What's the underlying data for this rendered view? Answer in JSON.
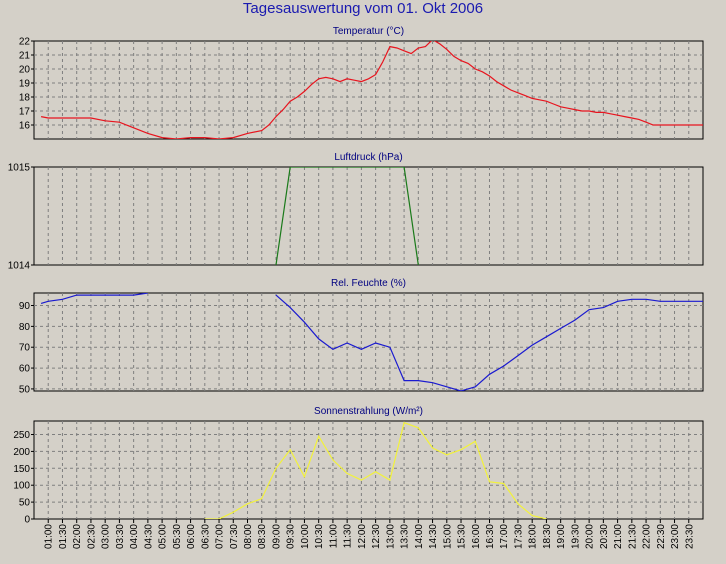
{
  "window": {
    "title": "Tagesauswertung vom 01. Okt 2006"
  },
  "colors": {
    "background": "#d4d0c8",
    "plot_background": "#d4d0c8",
    "grid": "#7f7f7f",
    "title": "#1a1ab0",
    "temperature": "#e8141e",
    "pressure": "#1a7a1a",
    "humidity": "#1a1ad0",
    "radiation": "#f2f23a"
  },
  "time_labels": [
    "01:00",
    "01:30",
    "02:00",
    "02:30",
    "03:00",
    "03:30",
    "04:00",
    "04:30",
    "05:00",
    "05:30",
    "06:00",
    "06:30",
    "07:00",
    "07:30",
    "08:00",
    "08:30",
    "09:00",
    "09:30",
    "10:00",
    "10:30",
    "11:00",
    "11:30",
    "12:00",
    "12:30",
    "13:00",
    "13:30",
    "14:00",
    "14:30",
    "15:00",
    "15:30",
    "16:00",
    "16:30",
    "17:00",
    "17:30",
    "18:00",
    "18:30",
    "19:00",
    "19:30",
    "20:00",
    "20:30",
    "21:00",
    "21:30",
    "22:00",
    "22:30",
    "23:00",
    "23:30"
  ],
  "chart_data": [
    {
      "type": "line",
      "title": "Temperatur (°C)",
      "xlabel": "",
      "ylabel": "",
      "ylim": [
        15,
        22
      ],
      "yticks": [
        16,
        17,
        18,
        19,
        20,
        21,
        22
      ],
      "grid": true,
      "series": [
        {
          "color": "#e8141e",
          "x": [
            0.5,
            1,
            2,
            3,
            4,
            5,
            6,
            7,
            8,
            9,
            10,
            11,
            12,
            13,
            14,
            15,
            16,
            16.5,
            17,
            17.5,
            18,
            18.5,
            19,
            19.5,
            20,
            20.5,
            21,
            21.5,
            22,
            22.5,
            23,
            23.5,
            24,
            24.5,
            25,
            25.5,
            26,
            26.5,
            27,
            27.5,
            28,
            28.5,
            29,
            29.5,
            30,
            30.5,
            31,
            31.5,
            32,
            32.5,
            33,
            33.5,
            34,
            34.5,
            35,
            35.5,
            36,
            36.5,
            37,
            37.5,
            38,
            38.5,
            39,
            39.5,
            40,
            40.5,
            41,
            41.5,
            42,
            42.5,
            43,
            43.5,
            44,
            44.5,
            45,
            45.5,
            46,
            46.5,
            47
          ],
          "y": [
            16.6,
            16.5,
            16.5,
            16.5,
            16.5,
            16.3,
            16.2,
            15.8,
            15.4,
            15.1,
            15.0,
            15.1,
            15.1,
            15.0,
            15.1,
            15.4,
            15.6,
            16.0,
            16.6,
            17.1,
            17.7,
            18.0,
            18.4,
            18.9,
            19.3,
            19.4,
            19.3,
            19.1,
            19.3,
            19.2,
            19.1,
            19.3,
            19.6,
            20.5,
            21.6,
            21.5,
            21.3,
            21.1,
            21.5,
            21.6,
            22.1,
            21.8,
            21.4,
            20.9,
            20.6,
            20.4,
            20.0,
            19.8,
            19.5,
            19.1,
            18.8,
            18.5,
            18.3,
            18.1,
            17.9,
            17.8,
            17.7,
            17.5,
            17.3,
            17.2,
            17.1,
            17.0,
            17.0,
            16.9,
            16.9,
            16.8,
            16.7,
            16.6,
            16.5,
            16.4,
            16.2,
            16.0,
            16.0,
            16.0,
            16.0,
            16.0,
            16.0,
            16.0,
            16.0
          ]
        }
      ]
    },
    {
      "type": "line",
      "title": "Luftdruck (hPa)",
      "xlabel": "",
      "ylabel": "",
      "ylim": [
        1014,
        1015
      ],
      "yticks": [
        1014,
        1015
      ],
      "grid": true,
      "series": [
        {
          "color": "#1a7a1a",
          "x": [
            17.0,
            18.0,
            26.0,
            27.0
          ],
          "y": [
            1014,
            1015,
            1015,
            1014
          ]
        }
      ]
    },
    {
      "type": "line",
      "title": "Rel. Feuchte (%)",
      "xlabel": "",
      "ylabel": "",
      "ylim": [
        49,
        96
      ],
      "yticks": [
        50,
        60,
        70,
        80,
        90
      ],
      "grid": true,
      "series": [
        {
          "color": "#1a1ad0",
          "segments": [
            {
              "x": [
                0.5,
                1,
                2,
                3,
                4,
                5,
                6,
                7,
                8
              ],
              "y": [
                91,
                92,
                93,
                95,
                95,
                95,
                95,
                95,
                96
              ]
            },
            {
              "x": [
                17,
                18,
                19,
                20,
                21,
                22,
                23,
                24,
                25,
                26,
                27,
                28,
                29,
                30,
                31,
                32,
                33,
                34,
                35,
                36,
                37,
                38,
                39,
                40,
                41,
                42,
                43,
                44,
                45,
                46,
                47
              ],
              "y": [
                95,
                89,
                82,
                74,
                69,
                72,
                69,
                72,
                70,
                54,
                54,
                53,
                51,
                49,
                51,
                57,
                61,
                66,
                71,
                75,
                79,
                83,
                88,
                89,
                92,
                93,
                93,
                92,
                92,
                92,
                92
              ]
            }
          ]
        }
      ]
    },
    {
      "type": "line",
      "title": "Sonnenstrahlung (W/m²)",
      "xlabel": "",
      "ylabel": "",
      "ylim": [
        0,
        290
      ],
      "yticks": [
        0,
        50,
        100,
        150,
        200,
        250
      ],
      "grid": true,
      "series": [
        {
          "color": "#f2f23a",
          "x": [
            12,
            13,
            14,
            15,
            16,
            17,
            18,
            19,
            20,
            21,
            22,
            23,
            24,
            25,
            26,
            27,
            28,
            29,
            30,
            31,
            32,
            33,
            34,
            35,
            36
          ],
          "y": [
            0,
            0,
            20,
            45,
            60,
            150,
            205,
            125,
            245,
            175,
            135,
            115,
            140,
            115,
            285,
            270,
            210,
            190,
            205,
            230,
            110,
            105,
            45,
            10,
            0
          ]
        }
      ]
    }
  ]
}
